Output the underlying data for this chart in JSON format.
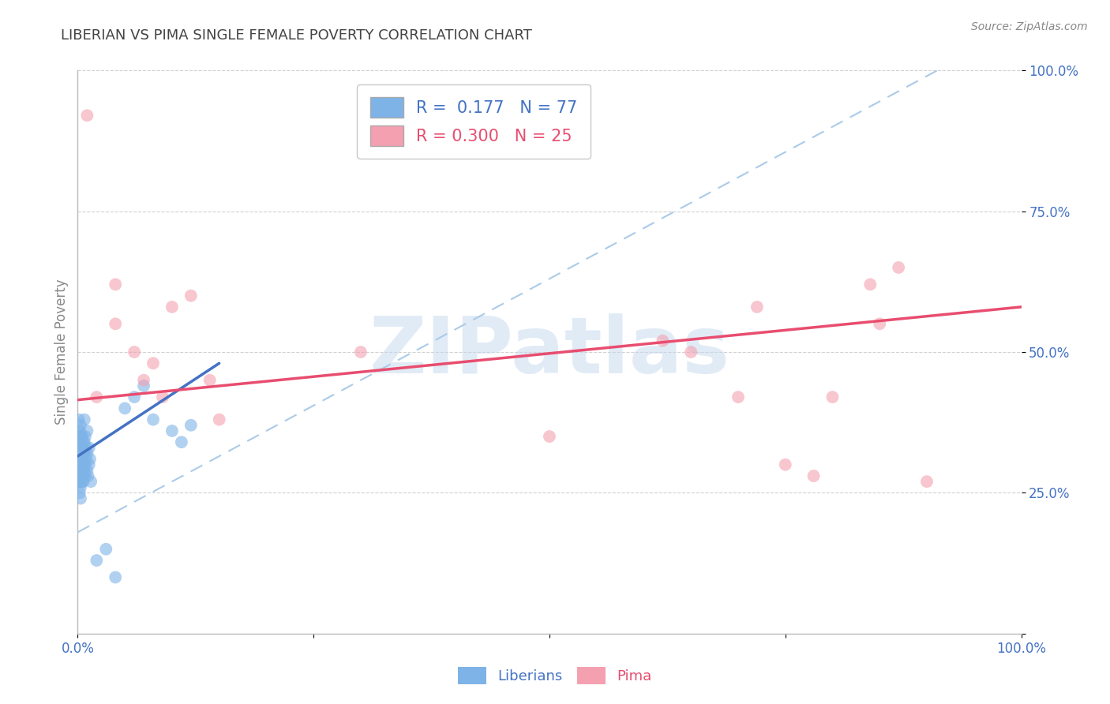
{
  "title": "LIBERIAN VS PIMA SINGLE FEMALE POVERTY CORRELATION CHART",
  "source": "Source: ZipAtlas.com",
  "ylabel": "Single Female Poverty",
  "xlim": [
    0.0,
    1.0
  ],
  "ylim": [
    0.0,
    1.0
  ],
  "liberian_color": "#7EB3E8",
  "pima_color": "#F4A0B0",
  "liberian_R": 0.177,
  "liberian_N": 77,
  "pima_R": 0.3,
  "pima_N": 25,
  "liberian_x": [
    0.0,
    0.001,
    0.001,
    0.001,
    0.001,
    0.001,
    0.001,
    0.001,
    0.001,
    0.001,
    0.002,
    0.002,
    0.002,
    0.002,
    0.002,
    0.002,
    0.002,
    0.002,
    0.002,
    0.002,
    0.003,
    0.003,
    0.003,
    0.003,
    0.003,
    0.003,
    0.003,
    0.003,
    0.003,
    0.003,
    0.004,
    0.004,
    0.004,
    0.004,
    0.004,
    0.004,
    0.004,
    0.004,
    0.005,
    0.005,
    0.005,
    0.005,
    0.005,
    0.005,
    0.005,
    0.006,
    0.006,
    0.006,
    0.006,
    0.006,
    0.007,
    0.007,
    0.007,
    0.007,
    0.008,
    0.008,
    0.008,
    0.009,
    0.009,
    0.01,
    0.01,
    0.01,
    0.011,
    0.012,
    0.012,
    0.013,
    0.014,
    0.05,
    0.06,
    0.07,
    0.08,
    0.1,
    0.11,
    0.12,
    0.04,
    0.02,
    0.03
  ],
  "liberian_y": [
    0.33,
    0.36,
    0.3,
    0.28,
    0.34,
    0.31,
    0.27,
    0.38,
    0.32,
    0.29,
    0.35,
    0.29,
    0.32,
    0.36,
    0.28,
    0.31,
    0.25,
    0.34,
    0.3,
    0.27,
    0.33,
    0.28,
    0.3,
    0.26,
    0.35,
    0.31,
    0.29,
    0.37,
    0.32,
    0.24,
    0.3,
    0.35,
    0.28,
    0.32,
    0.27,
    0.33,
    0.29,
    0.31,
    0.28,
    0.33,
    0.31,
    0.27,
    0.35,
    0.3,
    0.29,
    0.32,
    0.28,
    0.34,
    0.3,
    0.27,
    0.38,
    0.32,
    0.29,
    0.34,
    0.35,
    0.3,
    0.28,
    0.33,
    0.31,
    0.36,
    0.29,
    0.32,
    0.28,
    0.33,
    0.3,
    0.31,
    0.27,
    0.4,
    0.42,
    0.44,
    0.38,
    0.36,
    0.34,
    0.37,
    0.1,
    0.13,
    0.15
  ],
  "pima_x": [
    0.02,
    0.04,
    0.04,
    0.06,
    0.07,
    0.08,
    0.09,
    0.1,
    0.12,
    0.14,
    0.15,
    0.3,
    0.5,
    0.62,
    0.65,
    0.7,
    0.72,
    0.75,
    0.78,
    0.8,
    0.84,
    0.85,
    0.87,
    0.9,
    0.01
  ],
  "pima_y": [
    0.42,
    0.62,
    0.55,
    0.5,
    0.45,
    0.48,
    0.42,
    0.58,
    0.6,
    0.45,
    0.38,
    0.5,
    0.35,
    0.52,
    0.5,
    0.42,
    0.58,
    0.3,
    0.28,
    0.42,
    0.62,
    0.55,
    0.65,
    0.27,
    0.92
  ],
  "background_color": "#FFFFFF",
  "watermark_text": "ZIPatlas",
  "watermark_color": "#C5D8EE",
  "title_color": "#444444",
  "axis_label_color": "#888888",
  "tick_color_blue": "#4472C4",
  "tick_color_pink": "#E84D6F",
  "grid_color": "#CCCCCC",
  "regression_blue_color": "#4472C4",
  "regression_pink_color": "#E84D6F",
  "regression_dashed_color": "#AACBE8",
  "legend_box_color": "#DDDDDD",
  "blue_reg_intercept": 0.315,
  "blue_reg_slope": 1.1,
  "pink_reg_intercept": 0.415,
  "pink_reg_slope": 0.165,
  "dashed_intercept": 0.18,
  "dashed_slope": 0.9
}
